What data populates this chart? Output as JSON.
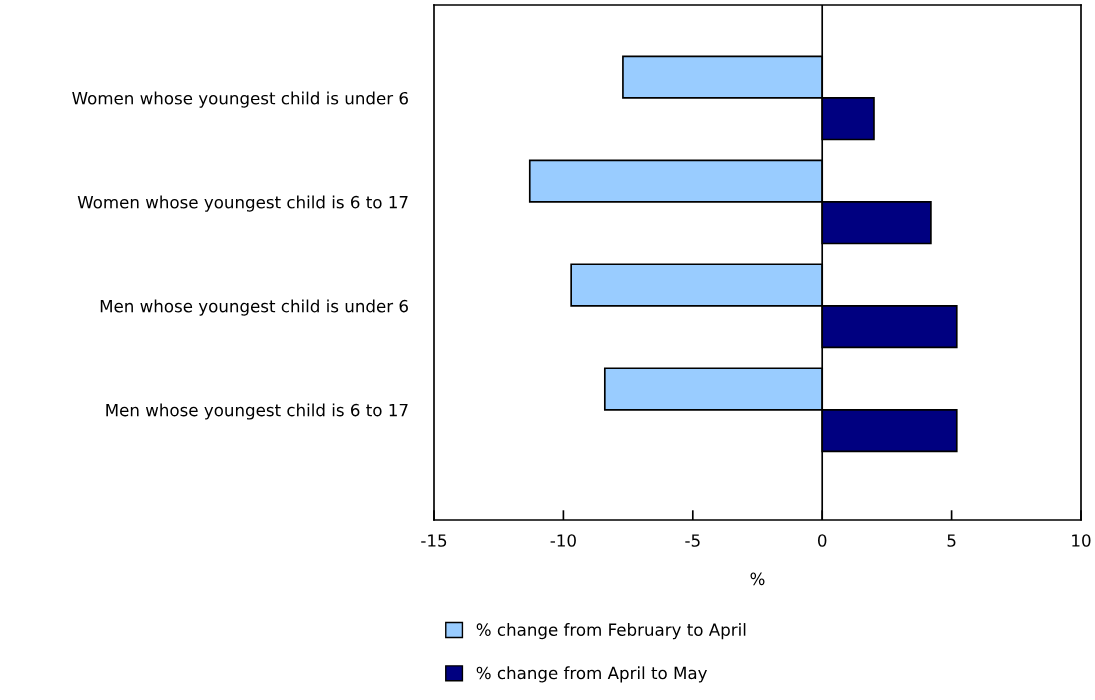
{
  "chart_data": {
    "type": "bar",
    "orientation": "horizontal",
    "categories": [
      "Women whose youngest child is under 6",
      "Women whose youngest child is 6 to 17",
      "Men whose youngest child is under 6",
      "Men whose youngest child is 6 to 17"
    ],
    "series": [
      {
        "name": "% change from February to April",
        "color": "#99ccff",
        "values": [
          -7.7,
          -11.3,
          -9.7,
          -8.4
        ]
      },
      {
        "name": "% change from April to May",
        "color": "#000080",
        "values": [
          2.0,
          4.2,
          5.2,
          5.2
        ]
      }
    ],
    "xlabel": "%",
    "xlim": [
      -15,
      10
    ],
    "xticks": [
      -15,
      -10,
      -5,
      0,
      5,
      10
    ],
    "ref_lines": [
      {
        "axis": "x",
        "value": 0,
        "color": "#000000"
      }
    ],
    "grid": false,
    "legend": "bottom"
  }
}
